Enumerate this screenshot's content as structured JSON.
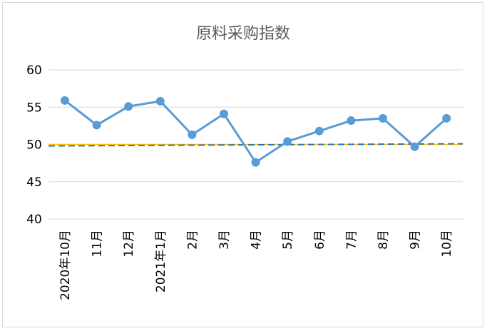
{
  "chart_data": {
    "type": "line",
    "title": "原料采购指数",
    "xlabel": "",
    "ylabel": "",
    "categories": [
      "2020年10月",
      "11月",
      "12月",
      "2021年1月",
      "2月",
      "3月",
      "4月",
      "5月",
      "6月",
      "7月",
      "8月",
      "9月",
      "10月"
    ],
    "series": [
      {
        "values": [
          55.9,
          52.6,
          55.1,
          55.8,
          51.3,
          54.1,
          47.6,
          50.4,
          51.8,
          53.2,
          53.5,
          49.7,
          53.5
        ],
        "color": "#5b9bd5"
      }
    ],
    "reference_lines": [
      {
        "value": 50,
        "color": "#ffc000",
        "style": "solid"
      }
    ],
    "trendline": {
      "start": 49.8,
      "end": 50.1,
      "color": "#2e75b6",
      "style": "dashed"
    },
    "ylim": [
      40,
      60
    ],
    "yticks": [
      40,
      45,
      50,
      55,
      60
    ],
    "grid": true,
    "legend": "none"
  }
}
